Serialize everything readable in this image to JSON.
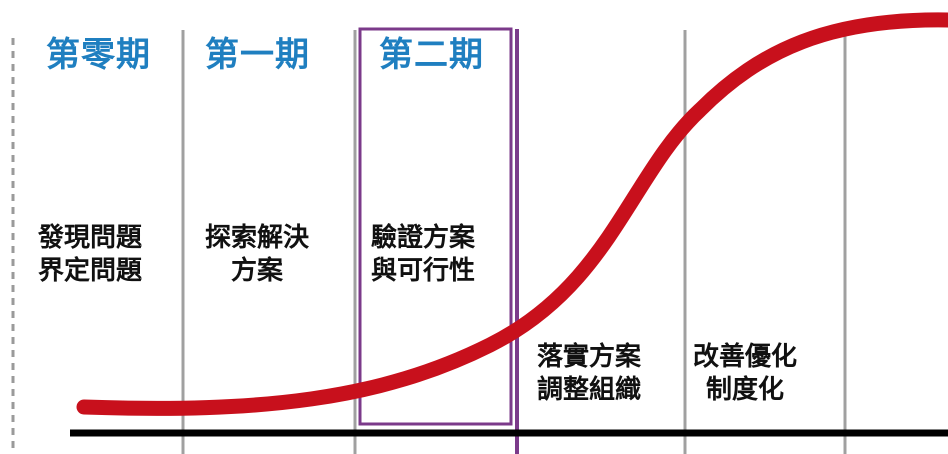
{
  "colors": {
    "phase_title": "#1f7fc0",
    "curve": "#c8101c",
    "highlight": "#7b3a8a",
    "divider": "#a0a0a0",
    "baseline": "#000000",
    "left_dashed": "#9a9a9a"
  },
  "phases": [
    {
      "title": "第零期",
      "desc_line1": "發現問題",
      "desc_line2": "界定問題"
    },
    {
      "title": "第一期",
      "desc_line1": "探索解決",
      "desc_line2": "方案"
    },
    {
      "title": "第二期",
      "desc_line1": "驗證方案",
      "desc_line2": "與可行性"
    },
    {
      "desc_line1": "落實方案",
      "desc_line2": "調整組織"
    },
    {
      "desc_line1": "改善優化",
      "desc_line2": "制度化"
    }
  ],
  "highlighted_phase": 2
}
